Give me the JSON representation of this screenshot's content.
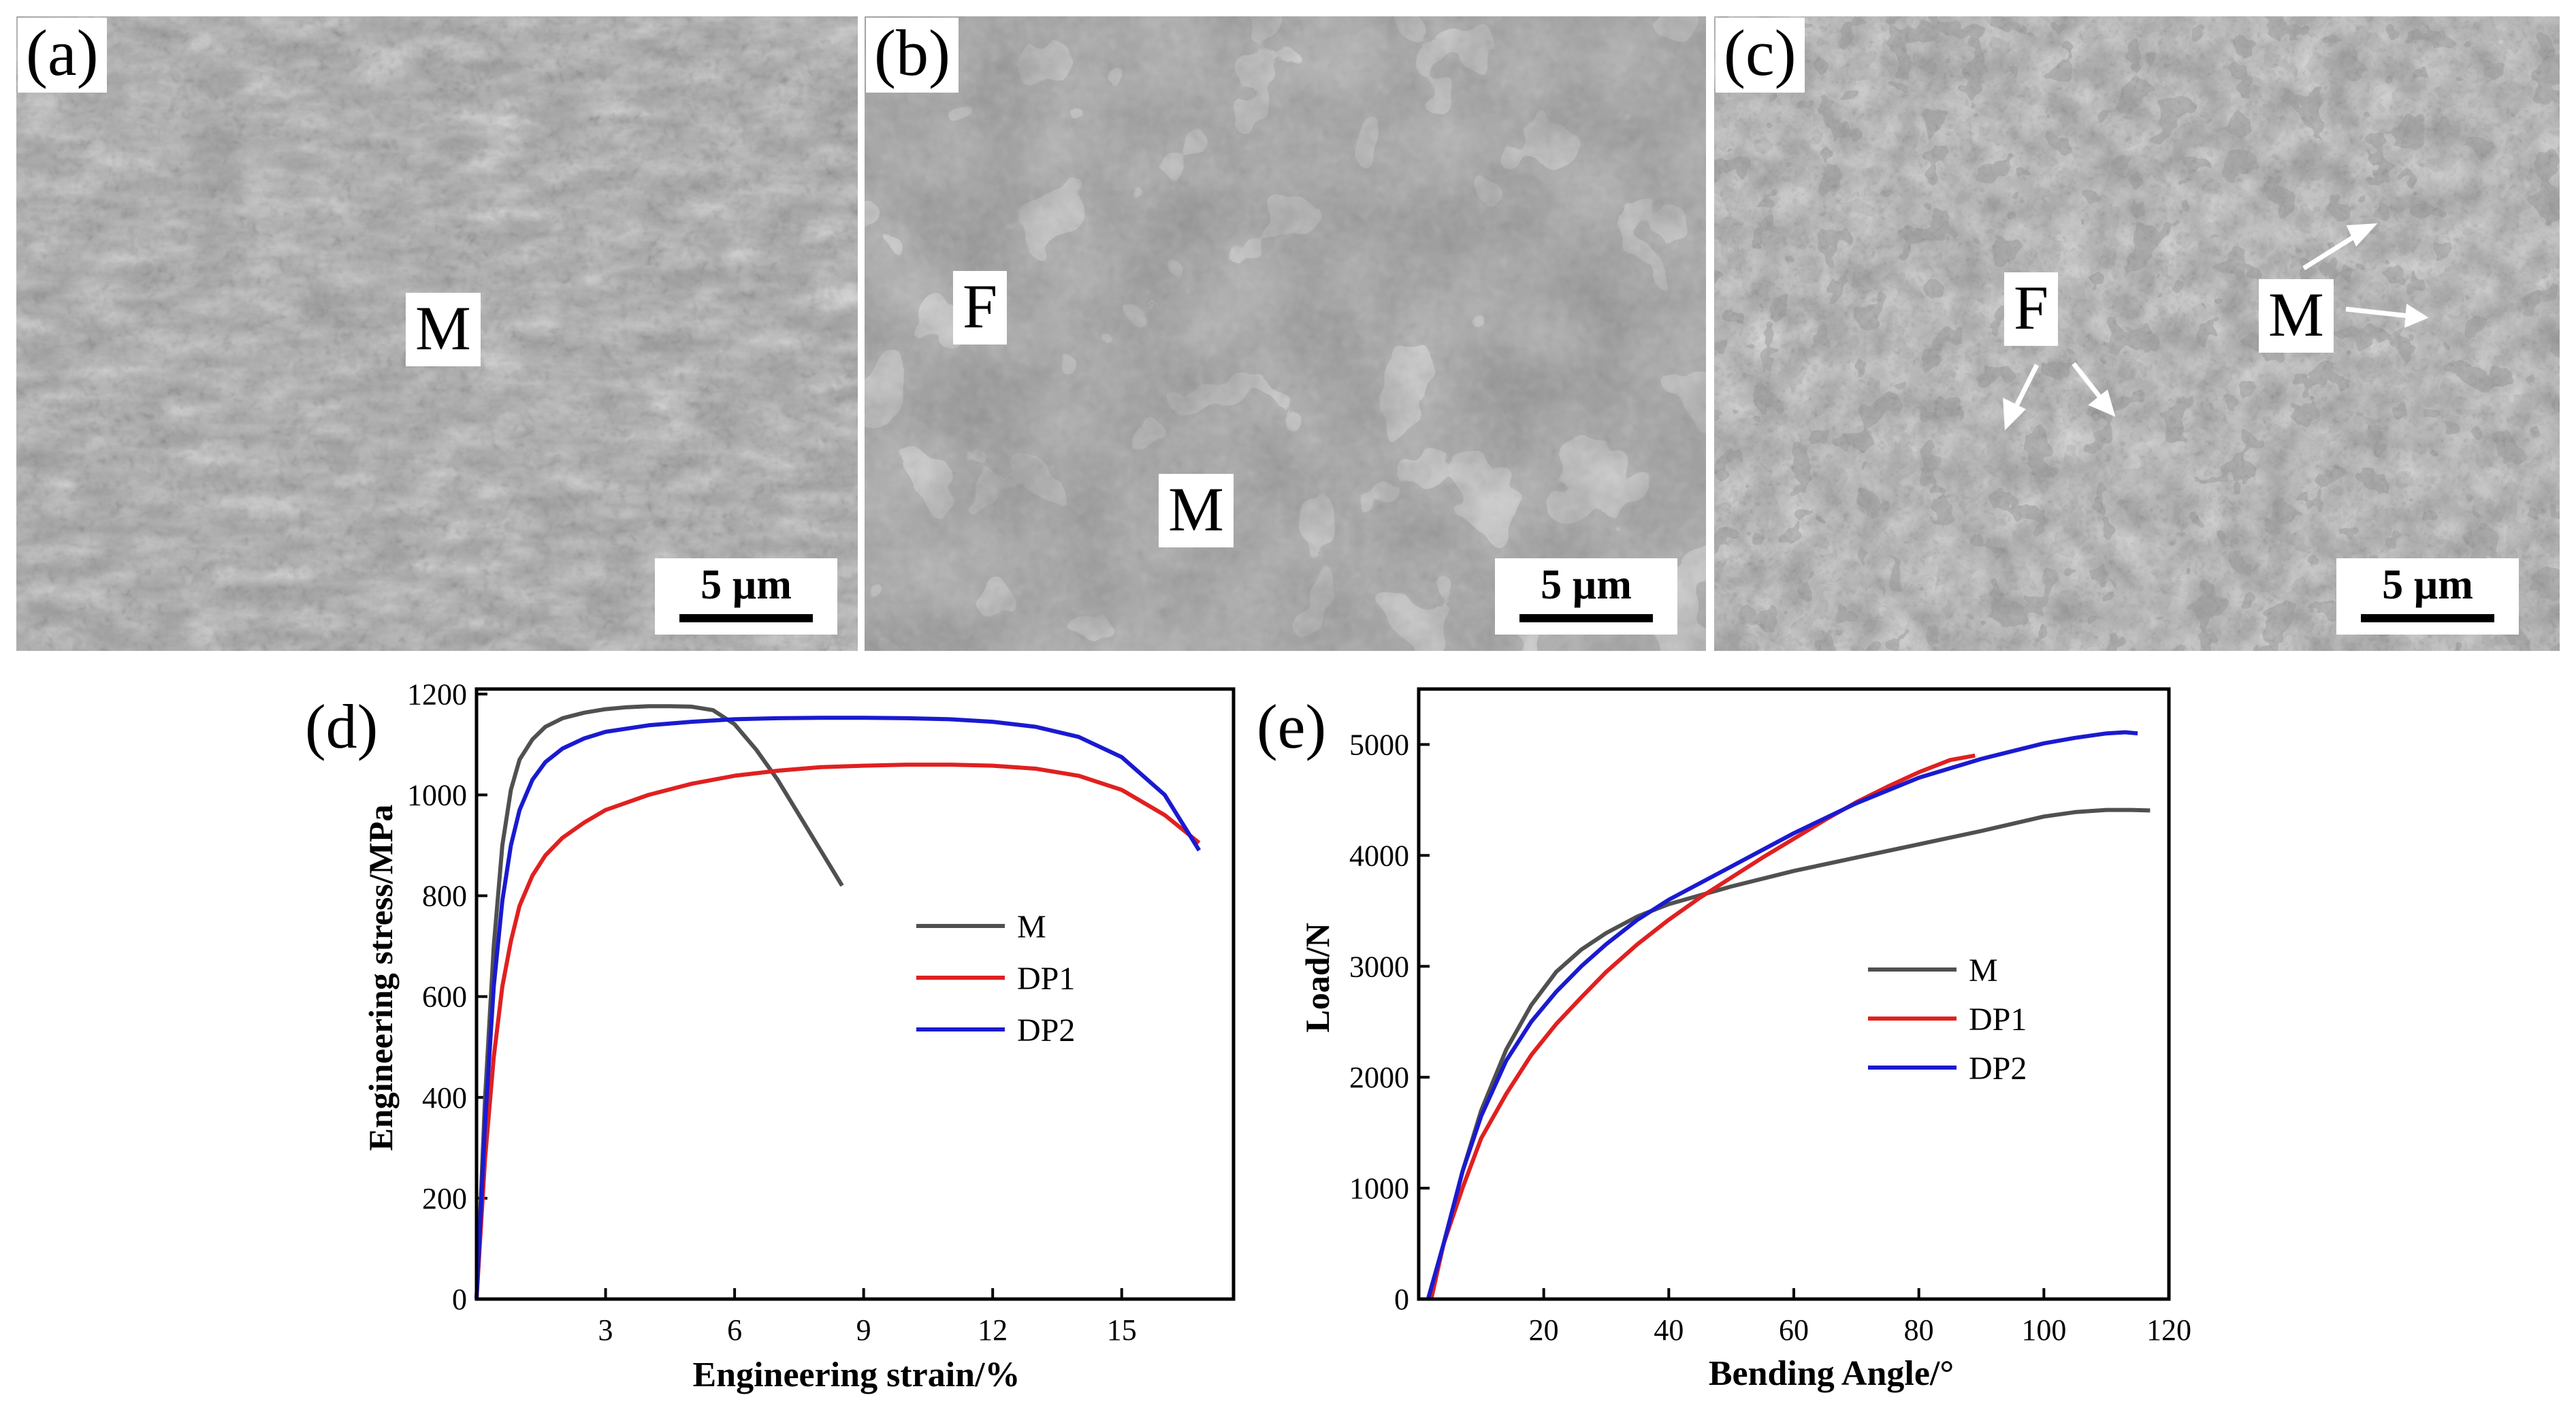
{
  "panels": {
    "a": {
      "tag": "(a)",
      "phases": [
        "M"
      ],
      "scale_label": "5 µm"
    },
    "b": {
      "tag": "(b)",
      "phases": [
        "F",
        "M"
      ],
      "scale_label": "5 µm"
    },
    "c": {
      "tag": "(c)",
      "phases": [
        "F",
        "M"
      ],
      "scale_label": "5 µm"
    }
  },
  "chart_data": [
    {
      "type": "line",
      "panel_tag": "(d)",
      "xlabel": "Engineering strain/%",
      "ylabel": "Engineering stress/MPa",
      "xlim": [
        0,
        17.6
      ],
      "ylim": [
        0,
        1210
      ],
      "xticks": [
        3,
        6,
        9,
        12,
        15
      ],
      "yticks": [
        0,
        200,
        400,
        600,
        800,
        1000,
        1200
      ],
      "legend_position": "center-right",
      "colors": {
        "M": "#505050",
        "DP1": "#e02020",
        "DP2": "#1a1ad0"
      },
      "series": [
        {
          "name": "M",
          "x": [
            0,
            0.2,
            0.4,
            0.6,
            0.8,
            1.0,
            1.3,
            1.6,
            2.0,
            2.5,
            3.0,
            3.5,
            4.0,
            4.5,
            5.0,
            5.5,
            6.0,
            6.5,
            7.0,
            7.5,
            8.0,
            8.5
          ],
          "y": [
            0,
            400,
            700,
            900,
            1010,
            1070,
            1110,
            1135,
            1152,
            1163,
            1170,
            1174,
            1176,
            1176,
            1175,
            1168,
            1140,
            1090,
            1030,
            960,
            890,
            820
          ]
        },
        {
          "name": "DP1",
          "x": [
            0,
            0.2,
            0.4,
            0.6,
            0.8,
            1.0,
            1.3,
            1.6,
            2.0,
            2.5,
            3,
            4,
            5,
            6,
            7,
            8,
            9,
            10,
            11,
            12,
            13,
            14,
            15,
            16,
            16.8
          ],
          "y": [
            0,
            280,
            480,
            620,
            710,
            780,
            840,
            880,
            915,
            945,
            970,
            1000,
            1022,
            1038,
            1048,
            1055,
            1058,
            1060,
            1060,
            1058,
            1052,
            1038,
            1010,
            960,
            905
          ]
        },
        {
          "name": "DP2",
          "x": [
            0,
            0.2,
            0.4,
            0.6,
            0.8,
            1.0,
            1.3,
            1.6,
            2.0,
            2.5,
            3,
            4,
            5,
            6,
            7,
            8,
            9,
            10,
            11,
            12,
            13,
            14,
            15,
            16,
            16.8
          ],
          "y": [
            0,
            350,
            620,
            790,
            900,
            970,
            1030,
            1065,
            1092,
            1112,
            1125,
            1138,
            1145,
            1150,
            1152,
            1153,
            1153,
            1152,
            1150,
            1145,
            1135,
            1115,
            1075,
            1000,
            890
          ]
        }
      ]
    },
    {
      "type": "line",
      "panel_tag": "(e)",
      "xlabel": "Bending Angle/°",
      "ylabel": "Load/N",
      "xlim": [
        0,
        120
      ],
      "ylim": [
        0,
        5500
      ],
      "xticks": [
        20,
        40,
        60,
        80,
        100,
        120
      ],
      "yticks": [
        0,
        1000,
        2000,
        3000,
        4000,
        5000
      ],
      "legend_position": "center-right",
      "colors": {
        "M": "#505050",
        "DP1": "#e02020",
        "DP2": "#1a1ad0"
      },
      "series": [
        {
          "name": "M",
          "x": [
            1.5,
            4,
            7,
            10,
            14,
            18,
            22,
            26,
            30,
            35,
            40,
            50,
            60,
            70,
            80,
            90,
            100,
            105,
            110,
            114,
            117
          ],
          "y": [
            0,
            500,
            1150,
            1700,
            2250,
            2650,
            2950,
            3150,
            3300,
            3450,
            3560,
            3720,
            3860,
            3980,
            4100,
            4220,
            4350,
            4390,
            4410,
            4410,
            4405
          ]
        },
        {
          "name": "DP1",
          "x": [
            2,
            4,
            7,
            10,
            14,
            18,
            22,
            26,
            30,
            35,
            40,
            45,
            50,
            55,
            60,
            65,
            70,
            75,
            80,
            85,
            89
          ],
          "y": [
            0,
            500,
            1000,
            1450,
            1850,
            2200,
            2480,
            2720,
            2950,
            3200,
            3420,
            3620,
            3800,
            3980,
            4150,
            4320,
            4480,
            4620,
            4750,
            4860,
            4900
          ]
        },
        {
          "name": "DP2",
          "x": [
            1.5,
            4,
            7,
            10,
            14,
            18,
            22,
            26,
            30,
            35,
            40,
            50,
            60,
            70,
            80,
            90,
            100,
            105,
            110,
            113,
            115
          ],
          "y": [
            0,
            500,
            1150,
            1650,
            2150,
            2500,
            2770,
            3000,
            3200,
            3420,
            3600,
            3900,
            4200,
            4470,
            4700,
            4870,
            5010,
            5060,
            5100,
            5110,
            5100
          ]
        }
      ]
    }
  ]
}
